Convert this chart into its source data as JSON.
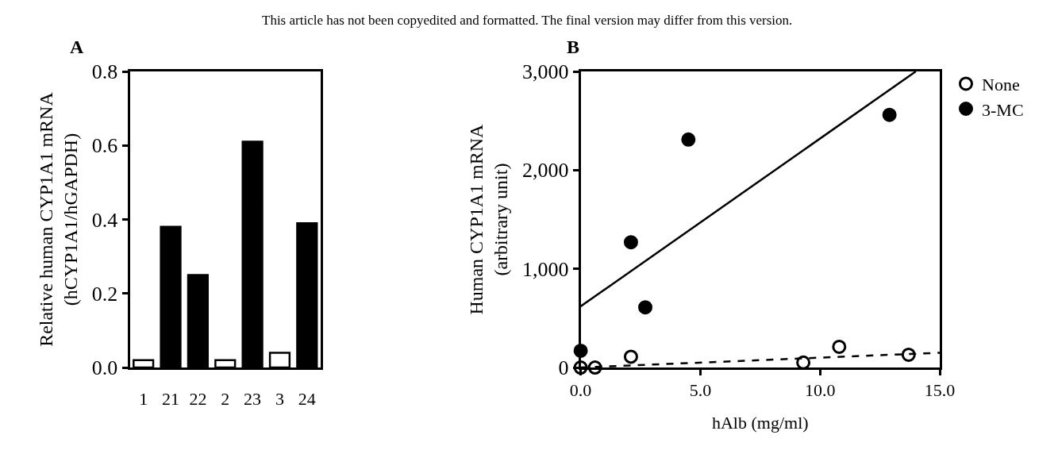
{
  "chart_data": [
    {
      "type": "bar",
      "title": "A",
      "annotations": [
        "This article has not been copyedited and formatted. The final version may differ from this version."
      ],
      "ylabel": "Relative human CYP1A1 mRNA\n(hCYP1A1/hGAPDH)",
      "categories": [
        "1",
        "21",
        "22",
        "2",
        "23",
        "3",
        "24"
      ],
      "values": [
        0.02,
        0.38,
        0.25,
        0.02,
        0.61,
        0.04,
        0.39
      ],
      "colors": [
        "#ffffff",
        "#000000",
        "#000000",
        "#ffffff",
        "#000000",
        "#ffffff",
        "#000000"
      ],
      "ylim": [
        0,
        0.8
      ],
      "yticks": [
        {
          "value": 0,
          "label": "0.0"
        },
        {
          "value": 0.2,
          "label": "0.2"
        },
        {
          "value": 0.4,
          "label": "0.4"
        },
        {
          "value": 0.6,
          "label": "0.6"
        },
        {
          "value": 0.8,
          "label": "0.8"
        }
      ],
      "legend": false
    },
    {
      "type": "scatter",
      "title": "B",
      "xlabel": "hAlb (mg/ml)",
      "ylabel": "Human CYP1A1 mRNA\n(arbitrary unit)",
      "legend": "top right",
      "marker": "circle",
      "series": [
        {
          "name": "None",
          "color": "#ffffff",
          "type": "scatter",
          "x": [
            0,
            0.6,
            2.1,
            9.3,
            10.8,
            13.7
          ],
          "values": [
            0,
            0,
            110,
            50,
            210,
            130
          ]
        },
        {
          "name": "3-MC",
          "color": "#000000",
          "type": "scatter",
          "x": [
            0,
            2.1,
            2.7,
            4.5,
            12.9
          ],
          "values": [
            170,
            1270,
            610,
            2310,
            2560
          ]
        },
        {
          "color": "#000000",
          "type": "line",
          "marker": "none",
          "line_style": "dashed",
          "x": [
            0,
            15
          ],
          "values": [
            0,
            150
          ]
        },
        {
          "color": "#000000",
          "type": "line",
          "marker": "none",
          "line_style": "solid",
          "x": [
            0,
            14.0
          ],
          "values": [
            620,
            3000
          ]
        }
      ],
      "xlim": [
        0,
        15
      ],
      "xticks": [
        {
          "value": 0,
          "label": "0.0"
        },
        {
          "value": 5,
          "label": "5.0"
        },
        {
          "value": 10,
          "label": "10.0"
        },
        {
          "value": 15,
          "label": "15.0"
        }
      ],
      "ylim": [
        0,
        3000
      ],
      "yticks": [
        0,
        {
          "value": 1000,
          "label": "1,000"
        },
        {
          "value": 2000,
          "label": "2,000"
        },
        {
          "value": 3000,
          "label": "3,000"
        }
      ]
    }
  ]
}
